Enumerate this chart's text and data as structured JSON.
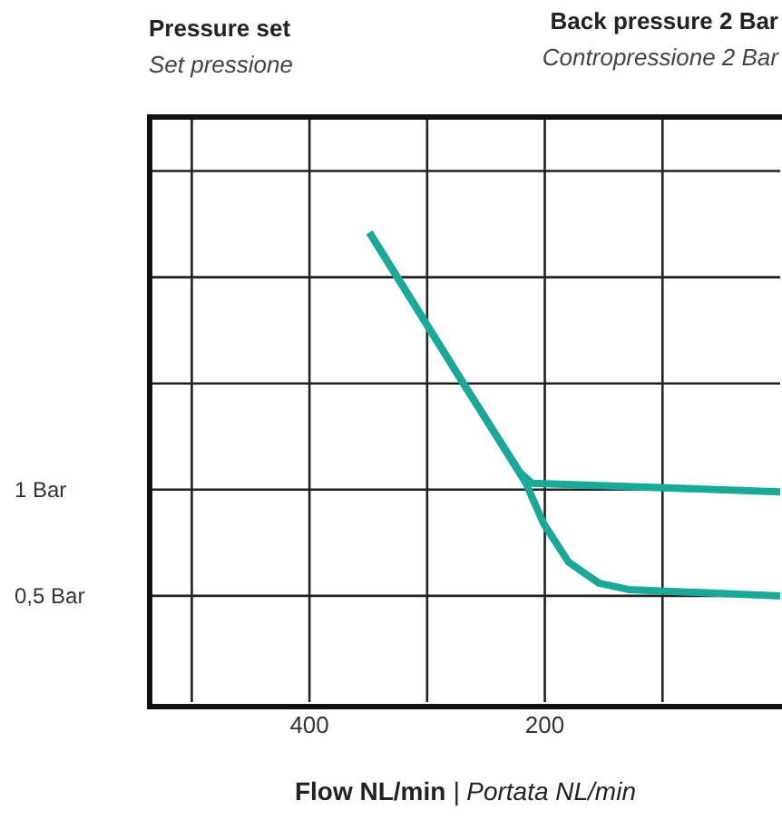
{
  "chart_data": {
    "type": "line",
    "title": "Back pressure 2 Bar",
    "subtitle": "Contropressione 2 Bar",
    "ylabel": "Pressure set",
    "annotations": [
      "Set pressione"
    ],
    "xlabel": "Flow NL/min | Portata NL/min",
    "xlim": [
      535,
      0
    ],
    "xticks": [
      {
        "value": 500,
        "label": null
      },
      400,
      {
        "value": 300,
        "label": null
      },
      200,
      {
        "value": 100,
        "label": null
      }
    ],
    "ylim": [
      0,
      2.75
    ],
    "yticks": [
      {
        "value": 0.5,
        "label": "0,5 Bar"
      },
      {
        "value": 1,
        "label": "1 Bar"
      },
      {
        "value": 1.5,
        "label": null
      },
      {
        "value": 2,
        "label": null
      },
      {
        "value": 2.5,
        "label": null
      }
    ],
    "grid": true,
    "series": [
      {
        "color": "#1aa898",
        "x": [
          349,
          268,
          221,
          211,
          0
        ],
        "values": [
          2.21,
          1.49,
          1.08,
          1.03,
          0.99
        ]
      },
      {
        "color": "#1aa898",
        "x": [
          349,
          268,
          216,
          201,
          180,
          154,
          129,
          0
        ],
        "values": [
          2.21,
          1.49,
          1.03,
          0.84,
          0.66,
          0.56,
          0.53,
          0.5
        ]
      }
    ]
  }
}
